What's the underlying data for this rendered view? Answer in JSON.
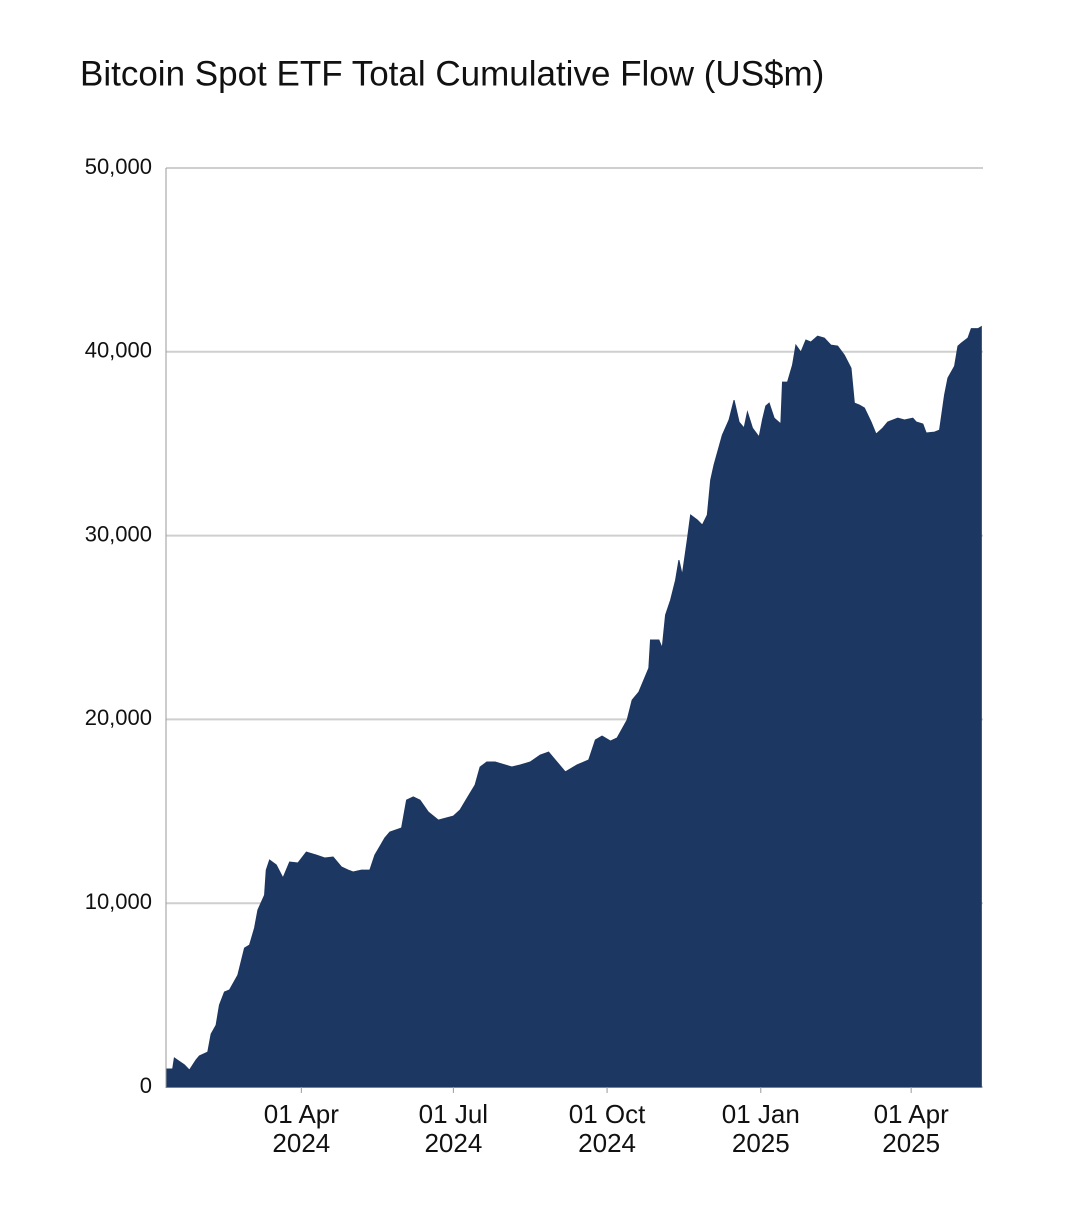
{
  "chart_data": {
    "type": "area",
    "title": "Bitcoin Spot ETF Total Cumulative Flow (US$m)",
    "color": "#1c3761",
    "grid": true,
    "xlim": [
      "2024-01-11",
      "2025-05-14"
    ],
    "xticks": [
      {
        "value": "2024-04-01",
        "label": [
          "01 Apr",
          "2024"
        ]
      },
      {
        "value": "2024-07-01",
        "label": [
          "01 Jul",
          "2024"
        ]
      },
      {
        "value": "2024-10-01",
        "label": [
          "01 Oct",
          "2024"
        ]
      },
      {
        "value": "2025-01-01",
        "label": [
          "01 Jan",
          "2025"
        ]
      },
      {
        "value": "2025-04-01",
        "label": [
          "01 Apr",
          "2025"
        ]
      }
    ],
    "ylim": [
      0,
      50000
    ],
    "yticks": [
      0,
      {
        "value": 10000,
        "label": "10,000"
      },
      {
        "value": 20000,
        "label": "20,000"
      },
      {
        "value": 30000,
        "label": "30,000"
      },
      {
        "value": 40000,
        "label": "40,000"
      },
      {
        "value": 50000,
        "label": "50,000"
      }
    ],
    "x": [
      "2024-01-11",
      "2024-01-15",
      "2024-01-16",
      "2024-01-22",
      "2024-01-25",
      "2024-01-29",
      "2024-01-31",
      "2024-02-05",
      "2024-02-07",
      "2024-02-10",
      "2024-02-12",
      "2024-02-15",
      "2024-02-18",
      "2024-02-23",
      "2024-02-27",
      "2024-03-01",
      "2024-03-04",
      "2024-03-06",
      "2024-03-10",
      "2024-03-11",
      "2024-03-13",
      "2024-03-17",
      "2024-03-21",
      "2024-03-25",
      "2024-03-30",
      "2024-04-04",
      "2024-04-10",
      "2024-04-15",
      "2024-04-20",
      "2024-04-25",
      "2024-04-29",
      "2024-05-02",
      "2024-05-07",
      "2024-05-12",
      "2024-05-15",
      "2024-05-21",
      "2024-05-24",
      "2024-05-31",
      "2024-06-03",
      "2024-06-07",
      "2024-06-11",
      "2024-06-16",
      "2024-06-22",
      "2024-07-01",
      "2024-07-05",
      "2024-07-10",
      "2024-07-14",
      "2024-07-17",
      "2024-07-21",
      "2024-07-26",
      "2024-08-01",
      "2024-08-05",
      "2024-08-10",
      "2024-08-16",
      "2024-08-22",
      "2024-08-27",
      "2024-08-31",
      "2024-09-06",
      "2024-09-13",
      "2024-09-20",
      "2024-09-24",
      "2024-09-28",
      "2024-10-03",
      "2024-10-07",
      "2024-10-13",
      "2024-10-16",
      "2024-10-20",
      "2024-10-26",
      "2024-10-27",
      "2024-11-01",
      "2024-11-03",
      "2024-11-05",
      "2024-11-08",
      "2024-11-11",
      "2024-11-13",
      "2024-11-15",
      "2024-11-18",
      "2024-11-20",
      "2024-11-24",
      "2024-11-27",
      "2024-11-30",
      "2024-12-02",
      "2024-12-04",
      "2024-12-09",
      "2024-12-13",
      "2024-12-16",
      "2024-12-19",
      "2024-12-22",
      "2024-12-24",
      "2024-12-27",
      "2024-12-31",
      "2025-01-02",
      "2025-01-04",
      "2025-01-06",
      "2025-01-09",
      "2025-01-13",
      "2025-01-14",
      "2025-01-17",
      "2025-01-20",
      "2025-01-22",
      "2025-01-25",
      "2025-01-28",
      "2025-01-31",
      "2025-02-04",
      "2025-02-08",
      "2025-02-12",
      "2025-02-16",
      "2025-02-20",
      "2025-02-24",
      "2025-02-26",
      "2025-03-01",
      "2025-03-04",
      "2025-03-08",
      "2025-03-11",
      "2025-03-15",
      "2025-03-18",
      "2025-03-24",
      "2025-03-28",
      "2025-04-02",
      "2025-04-04",
      "2025-04-08",
      "2025-04-10",
      "2025-04-15",
      "2025-04-18",
      "2025-04-21",
      "2025-04-23",
      "2025-04-27",
      "2025-04-29",
      "2025-05-01",
      "2025-05-05",
      "2025-05-07",
      "2025-05-11",
      "2025-05-13"
    ],
    "values": [
      980,
      980,
      1580,
      1200,
      920,
      1470,
      1690,
      1900,
      2880,
      3370,
      4460,
      5170,
      5280,
      6090,
      7560,
      7720,
      8650,
      9630,
      10440,
      11800,
      12350,
      12080,
      11370,
      12240,
      12190,
      12780,
      12620,
      12460,
      12510,
      11970,
      11800,
      11700,
      11800,
      11800,
      12620,
      13550,
      13870,
      14090,
      15610,
      15780,
      15610,
      14960,
      14520,
      14740,
      15070,
      15830,
      16430,
      17410,
      17680,
      17680,
      17520,
      17410,
      17520,
      17680,
      18060,
      18220,
      17790,
      17140,
      17520,
      17790,
      18880,
      19090,
      18820,
      18990,
      19970,
      21050,
      21490,
      22790,
      24320,
      24320,
      23880,
      25680,
      26490,
      27580,
      28670,
      27850,
      29760,
      31120,
      30850,
      30570,
      31120,
      33020,
      33840,
      35470,
      36290,
      37370,
      36180,
      35850,
      36720,
      35850,
      35360,
      36290,
      37050,
      37210,
      36390,
      36070,
      38350,
      38350,
      39280,
      40360,
      39980,
      40640,
      40530,
      40850,
      40750,
      40360,
      40310,
      39820,
      39110,
      37210,
      37100,
      36940,
      36180,
      35520,
      35850,
      36180,
      36390,
      36290,
      36390,
      36180,
      36070,
      35580,
      35630,
      35740,
      37650,
      38570,
      39220,
      40310,
      40470,
      40750,
      41260,
      41260,
      41370
    ]
  }
}
